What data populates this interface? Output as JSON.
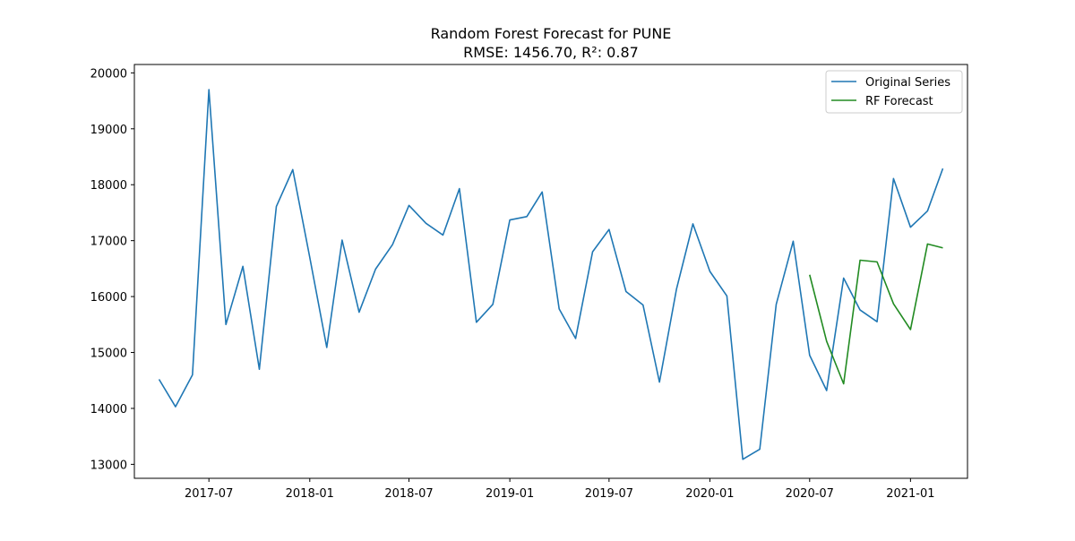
{
  "chart_data": {
    "type": "line",
    "title": "Random Forest Forecast for PUNE",
    "subtitle": "RMSE: 1456.70, R²: 0.87",
    "xlabel": "",
    "ylabel": "",
    "x_axis": "date",
    "xlim": [
      "2017-02-15",
      "2021-04-15"
    ],
    "ylim": [
      12750,
      20150
    ],
    "yticks": [
      13000,
      14000,
      15000,
      16000,
      17000,
      18000,
      19000,
      20000
    ],
    "xticks": [
      {
        "date": "2017-07-01",
        "label": "2017-07"
      },
      {
        "date": "2018-01-01",
        "label": "2018-01"
      },
      {
        "date": "2018-07-01",
        "label": "2018-07"
      },
      {
        "date": "2019-01-01",
        "label": "2019-01"
      },
      {
        "date": "2019-07-01",
        "label": "2019-07"
      },
      {
        "date": "2020-01-01",
        "label": "2020-01"
      },
      {
        "date": "2020-07-01",
        "label": "2020-07"
      },
      {
        "date": "2021-01-01",
        "label": "2021-01"
      }
    ],
    "grid": false,
    "legend_position": "top-right",
    "series": [
      {
        "name": "Original Series",
        "color": "#1f77b4",
        "x": [
          "2017-04-01",
          "2017-05-01",
          "2017-06-01",
          "2017-07-01",
          "2017-08-01",
          "2017-09-01",
          "2017-10-01",
          "2017-11-01",
          "2017-12-01",
          "2018-01-01",
          "2018-02-01",
          "2018-03-01",
          "2018-04-01",
          "2018-05-01",
          "2018-06-01",
          "2018-07-01",
          "2018-08-01",
          "2018-09-01",
          "2018-10-01",
          "2018-11-01",
          "2018-12-01",
          "2019-01-01",
          "2019-02-01",
          "2019-03-01",
          "2019-04-01",
          "2019-05-01",
          "2019-06-01",
          "2019-07-01",
          "2019-08-01",
          "2019-09-01",
          "2019-10-01",
          "2019-11-01",
          "2019-12-01",
          "2020-01-01",
          "2020-02-01",
          "2020-03-01",
          "2020-04-01",
          "2020-05-01",
          "2020-06-01",
          "2020-07-01",
          "2020-08-01",
          "2020-09-01",
          "2020-10-01",
          "2020-11-01",
          "2020-12-01",
          "2021-01-01",
          "2021-02-01",
          "2021-03-01"
        ],
        "values": [
          14520,
          14030,
          14600,
          19700,
          15500,
          16540,
          14700,
          17610,
          18270,
          16700,
          15090,
          17010,
          15720,
          16490,
          16930,
          17630,
          17310,
          17100,
          17930,
          15540,
          15860,
          17370,
          17430,
          17870,
          15780,
          15250,
          16800,
          17200,
          16090,
          15850,
          14470,
          16130,
          17300,
          16450,
          16010,
          13090,
          13270,
          15860,
          16990,
          14950,
          14320,
          16330,
          15760,
          15550,
          18110,
          17240,
          17530,
          18290
        ]
      },
      {
        "name": "RF Forecast",
        "color": "#228b22",
        "x": [
          "2020-07-01",
          "2020-08-01",
          "2020-09-01",
          "2020-10-01",
          "2020-11-01",
          "2020-12-01",
          "2021-01-01",
          "2021-02-01",
          "2021-03-01"
        ],
        "values": [
          16390,
          15200,
          14440,
          16650,
          16620,
          15870,
          15410,
          16940,
          16870
        ]
      }
    ]
  }
}
